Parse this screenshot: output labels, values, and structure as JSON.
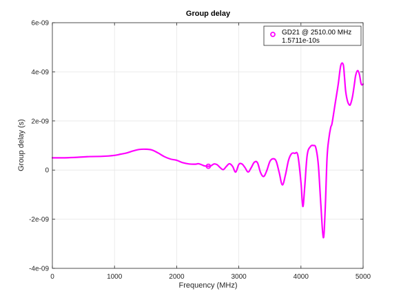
{
  "chart_data": {
    "type": "line",
    "title": "Group delay",
    "xlabel": "Frequency (MHz)",
    "ylabel": "Group delay (s)",
    "xlim": [
      0,
      5000
    ],
    "ylim": [
      -4e-09,
      6e-09
    ],
    "x_ticks": [
      0,
      1000,
      2000,
      3000,
      4000,
      5000
    ],
    "x_tick_labels": [
      "0",
      "1000",
      "2000",
      "3000",
      "4000",
      "5000"
    ],
    "y_ticks": [
      -4e-09,
      -2e-09,
      0,
      2e-09,
      4e-09,
      6e-09
    ],
    "y_tick_labels": [
      "-4e-09",
      "-2e-09",
      "0",
      "2e-09",
      "4e-09",
      "6e-09"
    ],
    "grid": true,
    "legend_position": "top-right",
    "series": [
      {
        "color": "#ff00ff",
        "x": [
          0,
          100,
          200,
          400,
          600,
          800,
          1000,
          1100,
          1200,
          1300,
          1400,
          1500,
          1600,
          1700,
          1800,
          1900,
          2000,
          2100,
          2200,
          2300,
          2350,
          2400,
          2450,
          2510,
          2550,
          2600,
          2650,
          2700,
          2750,
          2800,
          2850,
          2900,
          2950,
          3000,
          3050,
          3100,
          3150,
          3200,
          3250,
          3300,
          3350,
          3400,
          3450,
          3500,
          3550,
          3600,
          3650,
          3700,
          3750,
          3800,
          3850,
          3900,
          3950,
          4000,
          4030,
          4060,
          4100,
          4150,
          4200,
          4240,
          4280,
          4320,
          4360,
          4390,
          4420,
          4450,
          4480,
          4500,
          4550,
          4600,
          4640,
          4680,
          4700,
          4720,
          4750,
          4780,
          4800,
          4830,
          4860,
          4880,
          4910,
          4940,
          4970,
          5000
        ],
        "y": [
          5e-10,
          5e-10,
          5e-10,
          5.2e-10,
          5.5e-10,
          5.6e-10,
          6e-10,
          6.5e-10,
          7e-10,
          7.8e-10,
          8.4e-10,
          8.5e-10,
          8.2e-10,
          7e-10,
          5.5e-10,
          4.5e-10,
          4e-10,
          3e-10,
          2.5e-10,
          2.4e-10,
          2.6e-10,
          2.2e-10,
          1.7e-10,
          1.5711e-10,
          1.7e-10,
          2.5e-10,
          2.2e-10,
          1e-10,
          2e-11,
          1.5e-10,
          2.6e-10,
          1.5e-10,
          -8e-11,
          2.3e-10,
          2.5e-10,
          1e-10,
          -8e-11,
          1e-10,
          3.2e-10,
          3e-10,
          -1e-10,
          -2.6e-10,
          -2e-11,
          3.5e-10,
          4.6e-10,
          3.7e-10,
          -1e-10,
          -6e-10,
          -2e-10,
          4e-10,
          6.7e-10,
          6.8e-10,
          6e-10,
          -5e-10,
          -1.48e-09,
          -7e-10,
          6e-10,
          9.5e-10,
          1e-09,
          9e-10,
          2e-10,
          -1.4e-09,
          -2.75e-09,
          -1.6e-09,
          5e-10,
          1.3e-09,
          1.75e-09,
          1.9e-09,
          2.7e-09,
          3.5e-09,
          4.25e-09,
          4.3e-09,
          3.8e-09,
          3.2e-09,
          2.8e-09,
          2.65e-09,
          2.7e-09,
          3e-09,
          3.5e-09,
          3.85e-09,
          4.05e-09,
          3.9e-09,
          3.5e-09,
          3.5e-09
        ]
      }
    ],
    "marker": {
      "x": 2510,
      "y": 1.5711e-10,
      "legend_line1": "GD21 @ 2510.00 MHz",
      "legend_line2": "1.5711e-10s"
    }
  }
}
